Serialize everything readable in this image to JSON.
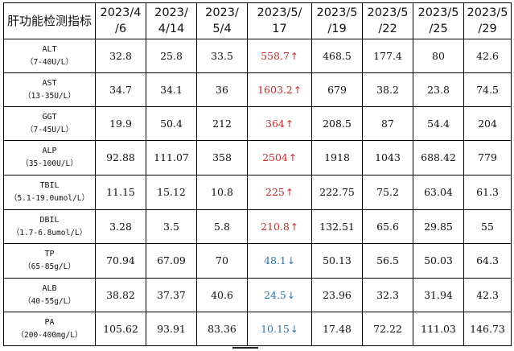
{
  "table": {
    "corner_label": "肝功能检测指标",
    "dates": [
      [
        "2023/4",
        "/6"
      ],
      [
        "2023/",
        "4/14"
      ],
      [
        "2023/",
        "5/4"
      ],
      [
        "2023/5/",
        "17"
      ],
      [
        "2023/5",
        "/19"
      ],
      [
        "2023/5",
        "/22"
      ],
      [
        "2023/5",
        "/25"
      ],
      [
        "2023/5",
        "/29"
      ]
    ],
    "rows": [
      {
        "abbr": "ALT",
        "range": "（7-40U/L）",
        "values": [
          "32.8",
          "25.8",
          "33.5",
          "558.7",
          "468.5",
          "177.4",
          "80",
          "42.6"
        ],
        "flag_col": 3,
        "flag": "high",
        "arrow": "↑"
      },
      {
        "abbr": "AST",
        "range": "（13-35U/L）",
        "values": [
          "34.7",
          "34.1",
          "36",
          "1603.2",
          "679",
          "38.2",
          "23.8",
          "74.5"
        ],
        "flag_col": 3,
        "flag": "high",
        "arrow": "↑"
      },
      {
        "abbr": "GGT",
        "range": "（7-45U/L）",
        "values": [
          "19.9",
          "50.4",
          "212",
          "364",
          "208.5",
          "87",
          "54.4",
          "204"
        ],
        "flag_col": 3,
        "flag": "high",
        "arrow": "↑"
      },
      {
        "abbr": "ALP",
        "range": "（35-100U/L）",
        "values": [
          "92.88",
          "111.07",
          "358",
          "2504",
          "1918",
          "1043",
          "688.42",
          "779"
        ],
        "flag_col": 3,
        "flag": "high",
        "arrow": "↑"
      },
      {
        "abbr": "TBIL",
        "range": "（5.1-19.0umol/L）",
        "values": [
          "11.15",
          "15.12",
          "10.8",
          "225",
          "222.75",
          "75.2",
          "63.04",
          "61.3"
        ],
        "flag_col": 3,
        "flag": "high",
        "arrow": "↑"
      },
      {
        "abbr": "DBIL",
        "range": "（1.7-6.8umol/L）",
        "values": [
          "3.28",
          "3.5",
          "5.8",
          "210.8",
          "132.51",
          "65.6",
          "29.85",
          "55"
        ],
        "flag_col": 3,
        "flag": "high",
        "arrow": "↑"
      },
      {
        "abbr": "TP",
        "range": "（65-85g/L）",
        "values": [
          "70.94",
          "67.09",
          "70",
          "48.1",
          "50.13",
          "56.5",
          "50.03",
          "64.3"
        ],
        "flag_col": 3,
        "flag": "low",
        "arrow": "↓"
      },
      {
        "abbr": "ALB",
        "range": "（40-55g/L）",
        "values": [
          "38.82",
          "37.37",
          "40.6",
          "24.5",
          "23.96",
          "32.3",
          "31.94",
          "42.3"
        ],
        "flag_col": 3,
        "flag": "low",
        "arrow": "↓"
      },
      {
        "abbr": "PA",
        "range": "（200-400mg/L）",
        "values": [
          "105.62",
          "93.91",
          "83.36",
          "10.15",
          "17.48",
          "72.22",
          "111.03",
          "146.73"
        ],
        "flag_col": 3,
        "flag": "low",
        "arrow": "↓"
      }
    ]
  },
  "colors": {
    "high": "#cc2a2a",
    "low": "#2a76b3",
    "border": "#000000"
  }
}
